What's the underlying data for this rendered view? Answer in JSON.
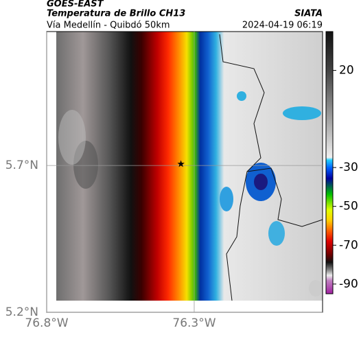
{
  "header": {
    "satellite": "GOES-EAST",
    "title": "Temperatura de Brillo CH13",
    "source": "SIATA",
    "subtitle": "Vía Medellín - Quibdó 50km",
    "timestamp": "2024-04-19 06:19"
  },
  "map": {
    "xlim": [
      -76.8,
      -75.865
    ],
    "ylim": [
      5.2,
      6.156
    ],
    "xticks": [
      {
        "value": -76.8,
        "label": "76.8°W"
      },
      {
        "value": -76.3,
        "label": "76.3°W"
      }
    ],
    "yticks": [
      {
        "value": 5.2,
        "label": "5.2°N"
      },
      {
        "value": 5.7,
        "label": "5.7°N"
      }
    ],
    "grid": true,
    "marker": {
      "lon": -76.345,
      "lat": 5.705
    }
  },
  "colorbar": {
    "lim": [
      40,
      -95
    ],
    "ticks": [
      20,
      -30,
      -50,
      -70,
      -90
    ]
  }
}
